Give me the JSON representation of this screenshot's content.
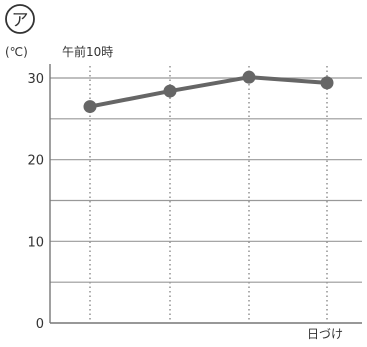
{
  "panel_label": "ア",
  "chart_data": {
    "type": "line",
    "title": "",
    "ylabel_unit": "(℃)",
    "ylabel": "午前10時",
    "xlabel": "日づけ",
    "x": [
      1,
      2,
      3,
      4
    ],
    "series": [
      {
        "values": [
          26.5,
          28.4,
          30.1,
          29.4
        ]
      }
    ],
    "ylim": [
      0,
      30
    ],
    "yticks": [
      0,
      10,
      20,
      30
    ],
    "ytick_labels": [
      "0",
      "10",
      "20",
      "30"
    ],
    "minor_gridlines": [
      5,
      15,
      25
    ],
    "grid": true,
    "vertical_gridlines": "dotted",
    "line_color": "#666666",
    "marker_color": "#666666",
    "grid_color": "#999999"
  }
}
